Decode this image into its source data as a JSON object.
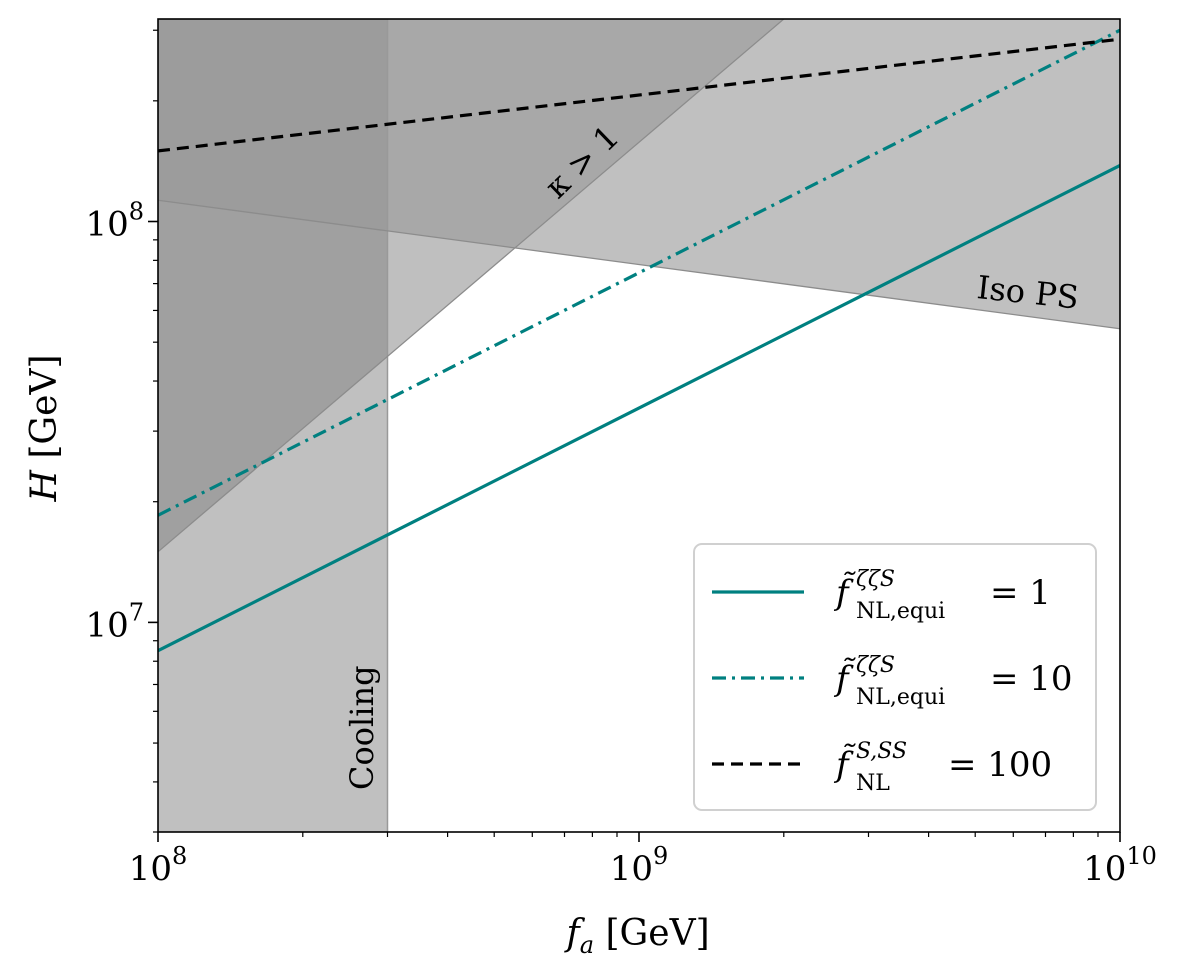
{
  "chart_data": {
    "type": "line",
    "xscale": "log",
    "yscale": "log",
    "xlim": [
      100000000,
      10000000000
    ],
    "ylim": [
      3000000,
      320000000
    ],
    "xlabel": "f_a [GeV]",
    "ylabel": "H [GeV]",
    "xticks": [
      {
        "value": 100000000,
        "base": "10",
        "exp": "8"
      },
      {
        "value": 1000000000,
        "base": "10",
        "exp": "9"
      },
      {
        "value": 10000000000,
        "base": "10",
        "exp": "10"
      }
    ],
    "yticks": [
      {
        "value": 10000000,
        "base": "10",
        "exp": "7"
      },
      {
        "value": 100000000,
        "base": "10",
        "exp": "8"
      }
    ],
    "regions": [
      {
        "name": "Cooling",
        "label": "Cooling",
        "color": "#c0c0c0",
        "x_range": [
          100000000,
          300000000
        ]
      },
      {
        "name": "kappa",
        "label": "κ > 1",
        "color": "#a6a6a6",
        "boundary": [
          [
            100000000,
            15000000
          ],
          [
            2000000000,
            320000000
          ]
        ]
      },
      {
        "name": "iso",
        "label": "Iso PS",
        "color": "#bdbdbd",
        "boundary": [
          [
            100000000,
            113000000
          ],
          [
            10000000000,
            54000000
          ]
        ]
      }
    ],
    "series": [
      {
        "name": "f_NL,equi^{ζζS} = 1",
        "f": "f̃",
        "sup": "ζζS",
        "sub": "NL,equi",
        "rhs": "= 1",
        "color": "#008080",
        "dash": "solid",
        "x": [
          100000000,
          10000000000
        ],
        "y": [
          8500000,
          138000000
        ]
      },
      {
        "name": "f_NL,equi^{ζζS} = 10",
        "f": "f̃",
        "sup": "ζζS",
        "sub": "NL,equi",
        "rhs": "= 10",
        "color": "#008080",
        "dash": "dashdot",
        "x": [
          100000000,
          10000000000
        ],
        "y": [
          18500000,
          300000000
        ]
      },
      {
        "name": "f_NL^{S,SS} = 100",
        "f": "f̃",
        "sup": "S,SS",
        "sub": "NL",
        "rhs": "= 100",
        "color": "#000000",
        "dash": "dashed",
        "x": [
          100000000,
          10000000000
        ],
        "y": [
          150000000,
          285000000
        ]
      }
    ],
    "legend_position": "lower-right"
  }
}
